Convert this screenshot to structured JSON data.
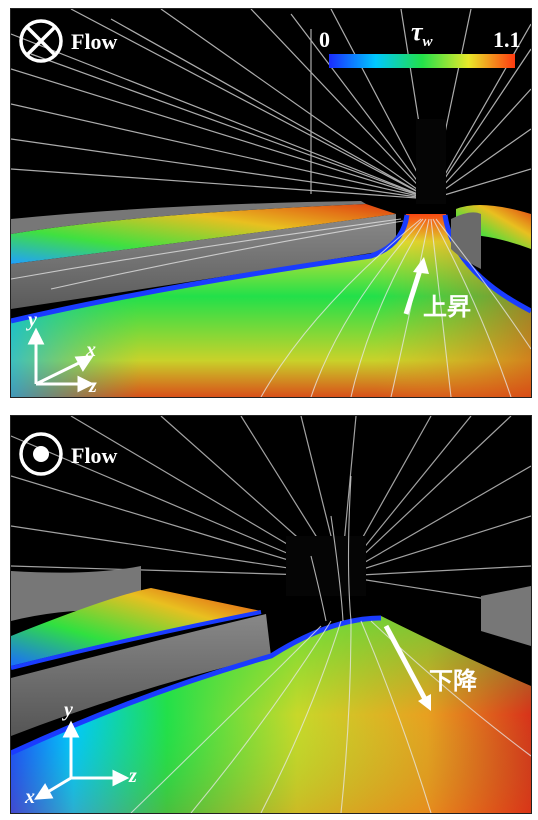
{
  "top_panel": {
    "flow_icon": "cross-circle-icon",
    "flow_label": "Flow",
    "colorbar": {
      "symbol": "τ",
      "subscript": "w",
      "min_label": "0",
      "max_label": "1.1",
      "colors": [
        "#1a2cff",
        "#00c8ff",
        "#22e04a",
        "#e8e82a",
        "#ff3a10"
      ]
    },
    "annotation": "上昇",
    "axes": {
      "y": "y",
      "x": "x",
      "z": "z"
    }
  },
  "bottom_panel": {
    "flow_icon": "dot-circle-icon",
    "flow_label": "Flow",
    "annotation": "下降",
    "axes": {
      "y": "y",
      "x": "x",
      "z": "z"
    }
  }
}
